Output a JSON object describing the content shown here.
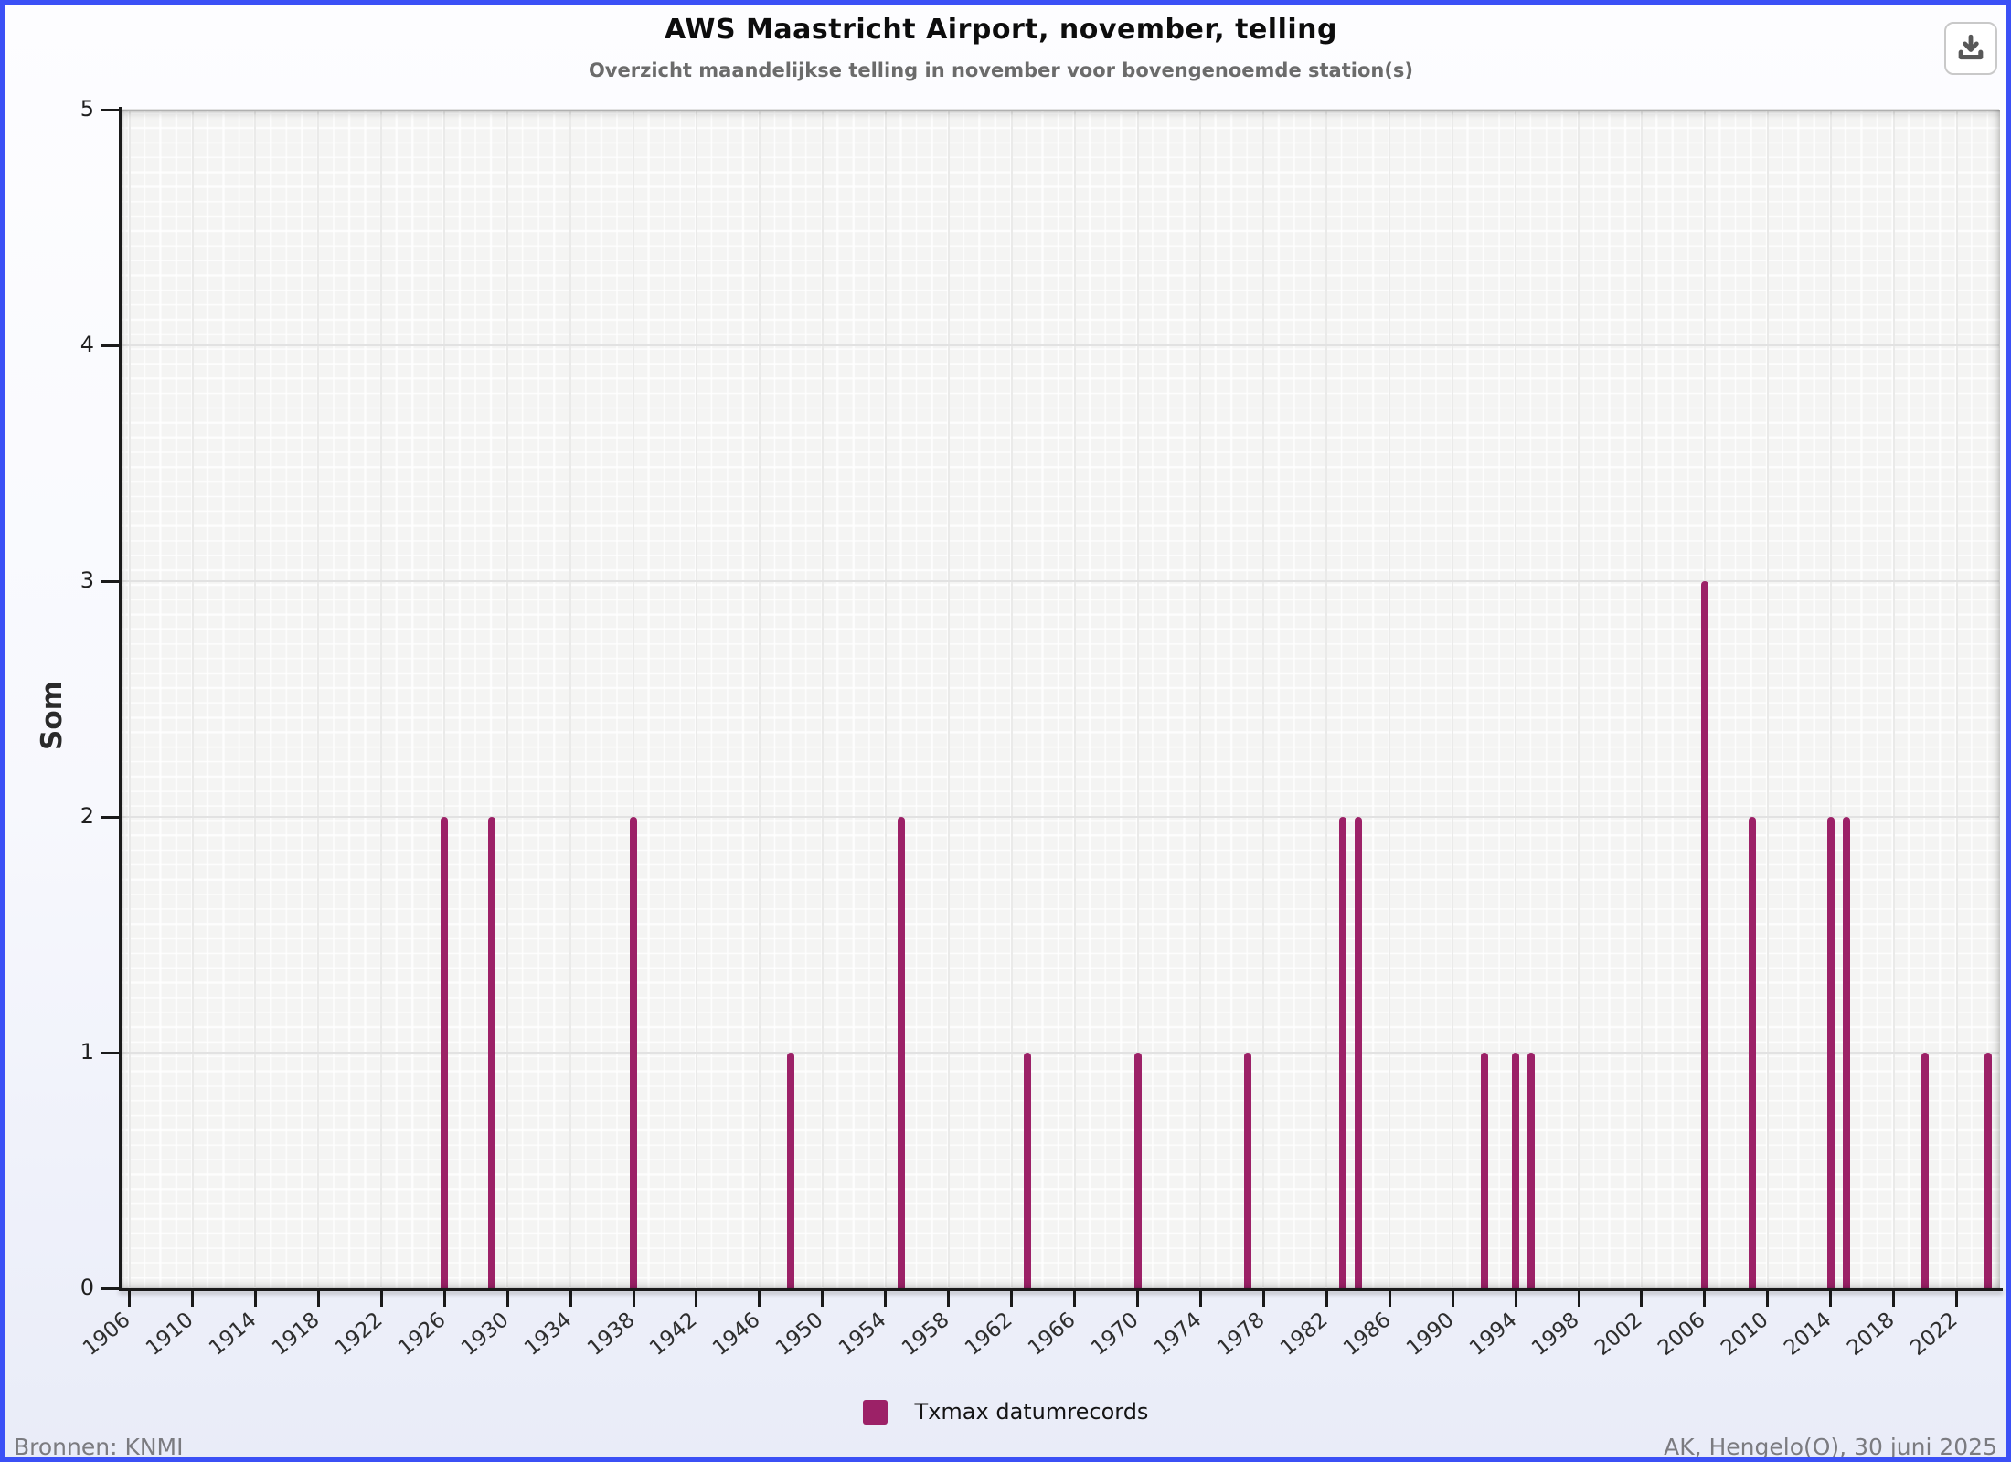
{
  "header": {
    "title": "AWS Maastricht Airport, november, telling",
    "subtitle": "Overzicht maandelijkse telling in november voor bovengenoemde station(s)"
  },
  "toolbar": {
    "download_icon": "download-icon"
  },
  "chart_data": {
    "type": "bar",
    "title": "AWS Maastricht Airport, november, telling",
    "subtitle": "Overzicht maandelijkse telling in november voor bovengenoemde station(s)",
    "xlabel": "",
    "ylabel": "Som",
    "ylim": [
      0,
      5
    ],
    "xlim": [
      1905.5,
      2024.75
    ],
    "yticks": [
      0,
      1,
      2,
      3,
      4,
      5
    ],
    "xticks": [
      1906,
      1910,
      1914,
      1918,
      1922,
      1926,
      1930,
      1934,
      1938,
      1942,
      1946,
      1950,
      1954,
      1958,
      1962,
      1966,
      1970,
      1974,
      1978,
      1982,
      1986,
      1990,
      1994,
      1998,
      2002,
      2006,
      2010,
      2014,
      2018,
      2022
    ],
    "grid": "major horizontal gridlines + fine minor mesh, vertical line per year",
    "legend_position": "bottom-center",
    "series": [
      {
        "name": "Txmax datumrecords",
        "color": "#9c2167",
        "points": [
          {
            "x": 1926,
            "y": 2
          },
          {
            "x": 1929,
            "y": 2
          },
          {
            "x": 1938,
            "y": 2
          },
          {
            "x": 1948,
            "y": 1
          },
          {
            "x": 1955,
            "y": 2
          },
          {
            "x": 1963,
            "y": 1
          },
          {
            "x": 1970,
            "y": 1
          },
          {
            "x": 1977,
            "y": 1
          },
          {
            "x": 1983,
            "y": 2
          },
          {
            "x": 1984,
            "y": 2
          },
          {
            "x": 1992,
            "y": 1
          },
          {
            "x": 1994,
            "y": 1
          },
          {
            "x": 1995,
            "y": 1
          },
          {
            "x": 2006,
            "y": 3
          },
          {
            "x": 2009,
            "y": 2
          },
          {
            "x": 2014,
            "y": 2
          },
          {
            "x": 2015,
            "y": 2
          },
          {
            "x": 2020,
            "y": 1
          },
          {
            "x": 2024,
            "y": 1
          }
        ]
      }
    ]
  },
  "legend": {
    "items": [
      {
        "label": "Txmax datumrecords",
        "color": "#9c2167"
      }
    ]
  },
  "footer": {
    "source": "Bronnen: KNMI",
    "credit": "AK, Hengelo(O), 30 juni 2025"
  },
  "colors": {
    "accent_border": "#3b50f6",
    "bar": "#9c2167",
    "plot_bg": "#f4f4f3",
    "grid_major": "#e2e2e2",
    "axis": "#1a1a1a",
    "subtitle_text": "#6b6b6b",
    "footer_text": "#7b7b80"
  }
}
